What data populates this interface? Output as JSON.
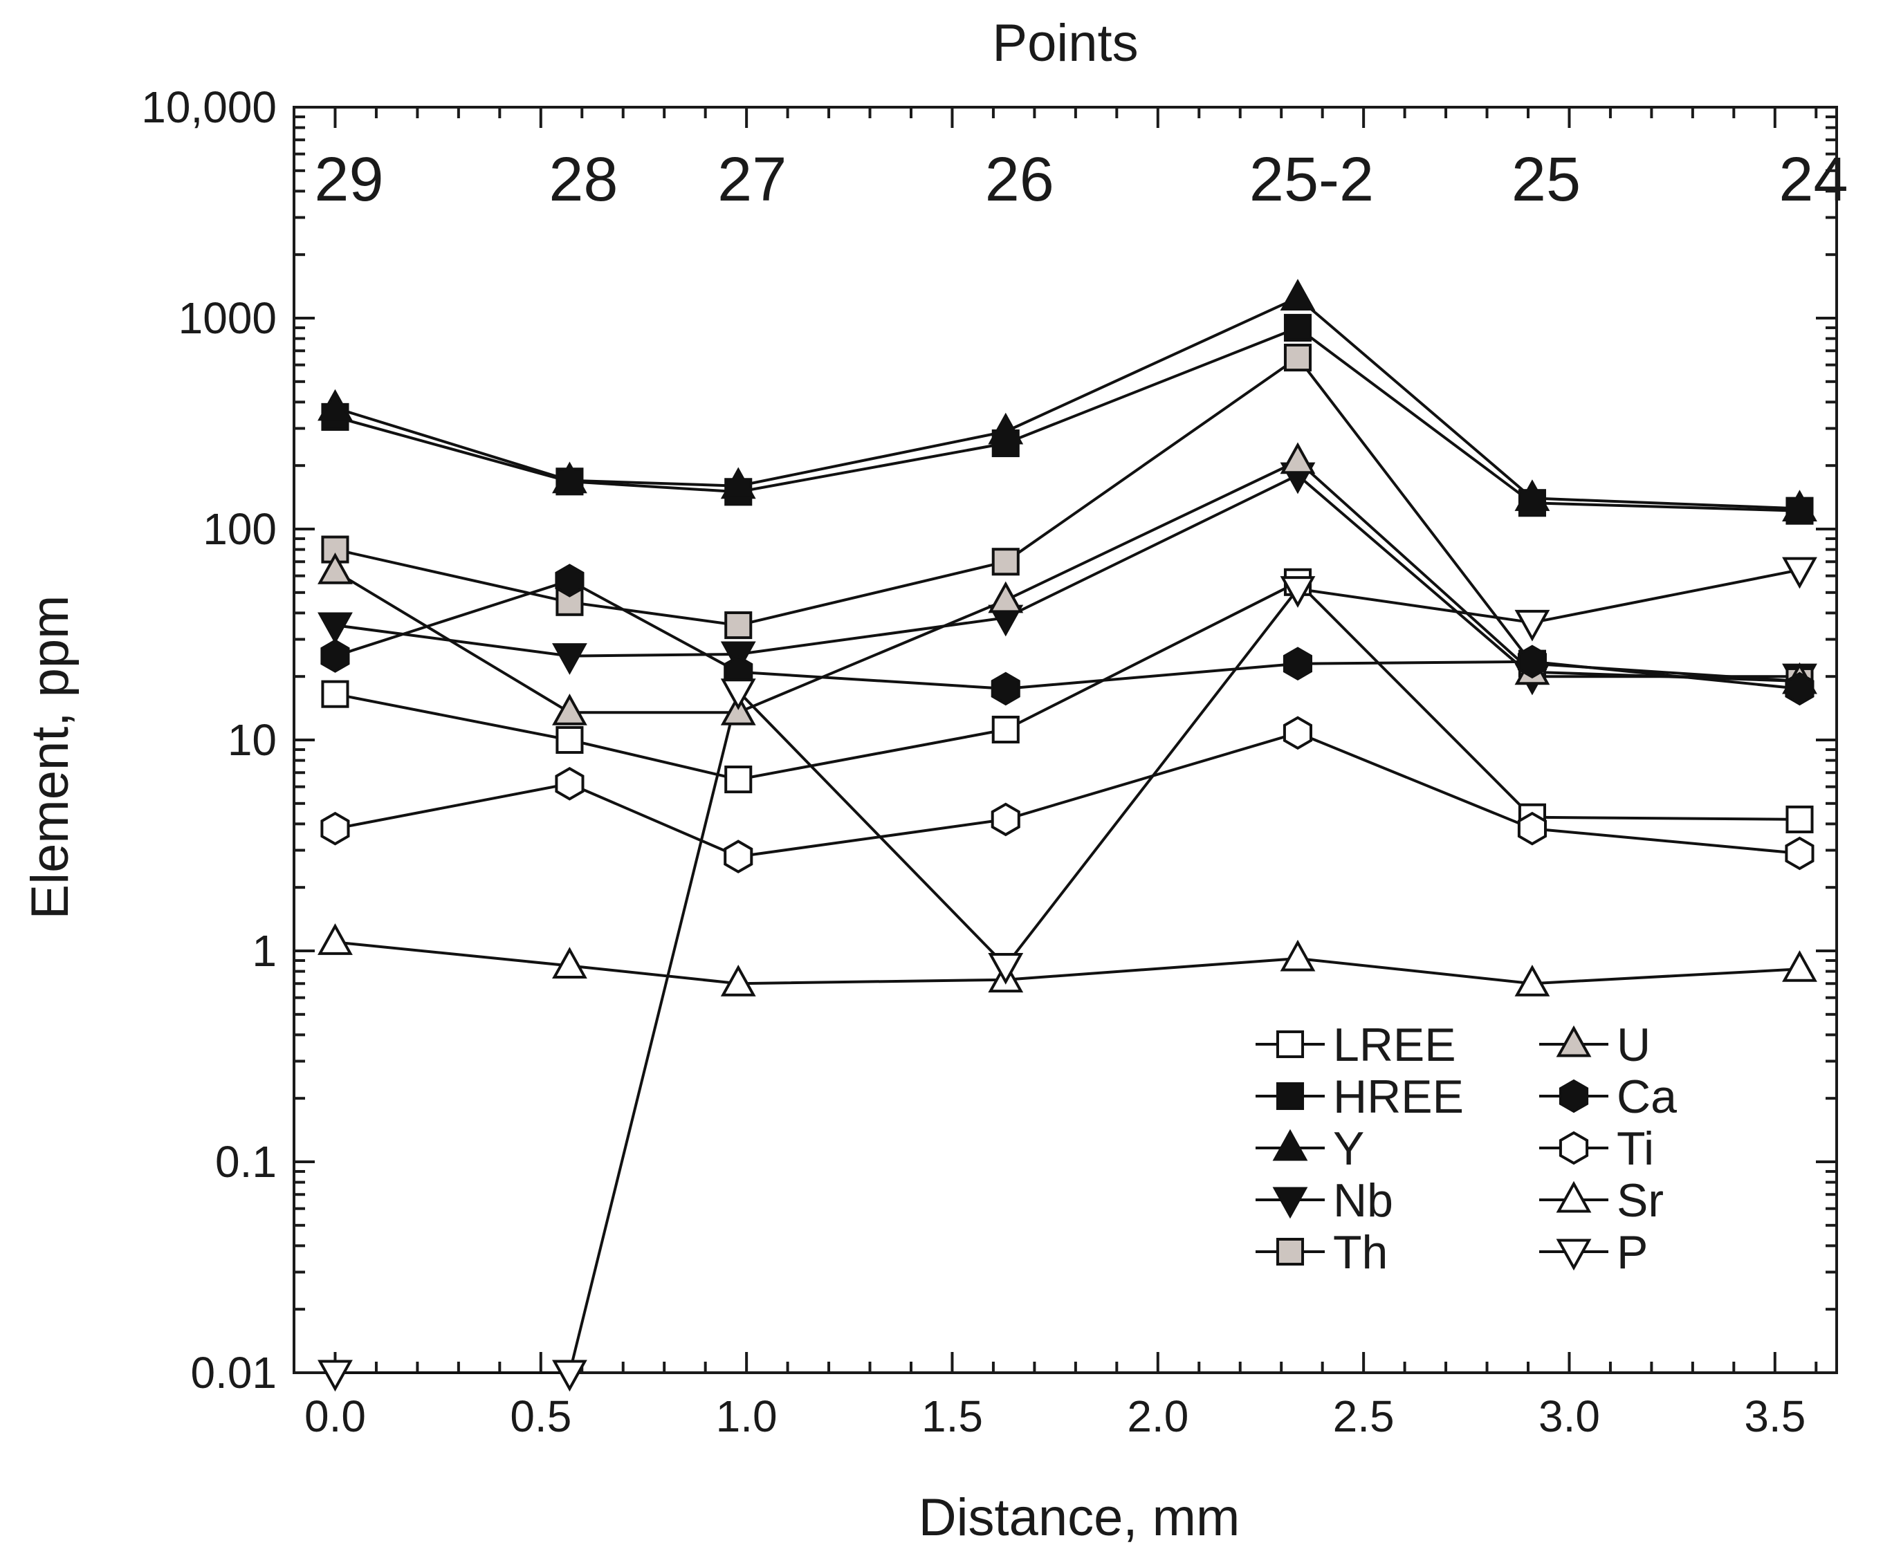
{
  "chart_data": {
    "type": "line",
    "title": "Points",
    "xlabel": "Distance, mm",
    "ylabel": "Element, ppm",
    "yscale": "log",
    "ylim": [
      0.01,
      10000
    ],
    "xlim": [
      -0.1,
      3.65
    ],
    "x_ticks": [
      0.0,
      0.5,
      1.0,
      1.5,
      2.0,
      2.5,
      3.0,
      3.5
    ],
    "x_tick_labels": [
      "0.0",
      "0.5",
      "1.0",
      "1.5",
      "2.0",
      "2.5",
      "3.0",
      "3.5"
    ],
    "y_ticks": [
      0.01,
      0.1,
      1,
      10,
      100,
      1000,
      10000
    ],
    "y_tick_labels": [
      "0.01",
      "0.1",
      "1",
      "10",
      "100",
      "1000",
      "10,000"
    ],
    "x": [
      0.0,
      0.57,
      0.98,
      1.63,
      2.34,
      2.91,
      3.56
    ],
    "point_labels": [
      "29",
      "28",
      "27",
      "26",
      "25-2",
      "25",
      "24"
    ],
    "series": [
      {
        "name": "LREE",
        "marker": "square",
        "fill": "#ffffff",
        "values": [
          16.5,
          10.0,
          6.5,
          11.2,
          56,
          4.3,
          4.2
        ]
      },
      {
        "name": "HREE",
        "marker": "square",
        "fill": "#111111",
        "values": [
          340,
          168,
          150,
          255,
          900,
          133,
          122
        ]
      },
      {
        "name": "Y",
        "marker": "triangle-up",
        "fill": "#111111",
        "values": [
          375,
          170,
          160,
          290,
          1250,
          140,
          125
        ]
      },
      {
        "name": "Nb",
        "marker": "triangle-down",
        "fill": "#111111",
        "values": [
          35,
          25,
          25.5,
          38,
          180,
          20,
          20
        ]
      },
      {
        "name": "Th",
        "marker": "square",
        "fill": "#cdc5c0",
        "values": [
          80,
          45,
          35,
          70,
          650,
          23,
          19
        ]
      },
      {
        "name": "U",
        "marker": "triangle-up",
        "fill": "#cdc5c0",
        "values": [
          63,
          13.5,
          13.5,
          46,
          210,
          21,
          19
        ]
      },
      {
        "name": "Ca",
        "marker": "hexagon",
        "fill": "#111111",
        "values": [
          25,
          57,
          21,
          17.5,
          23,
          23.5,
          17.5
        ]
      },
      {
        "name": "Ti",
        "marker": "hexagon",
        "fill": "#ffffff",
        "values": [
          3.8,
          6.2,
          2.8,
          4.2,
          10.8,
          3.8,
          2.9
        ]
      },
      {
        "name": "Sr",
        "marker": "triangle-up",
        "fill": "#ffffff",
        "values": [
          1.1,
          0.85,
          0.7,
          0.73,
          0.92,
          0.7,
          0.82
        ]
      },
      {
        "name": "P",
        "marker": "triangle-down",
        "fill": "#ffffff",
        "values": [
          0.01,
          0.01,
          17,
          0.85,
          52,
          36,
          64
        ]
      }
    ],
    "legend_position": "bottom-right"
  }
}
